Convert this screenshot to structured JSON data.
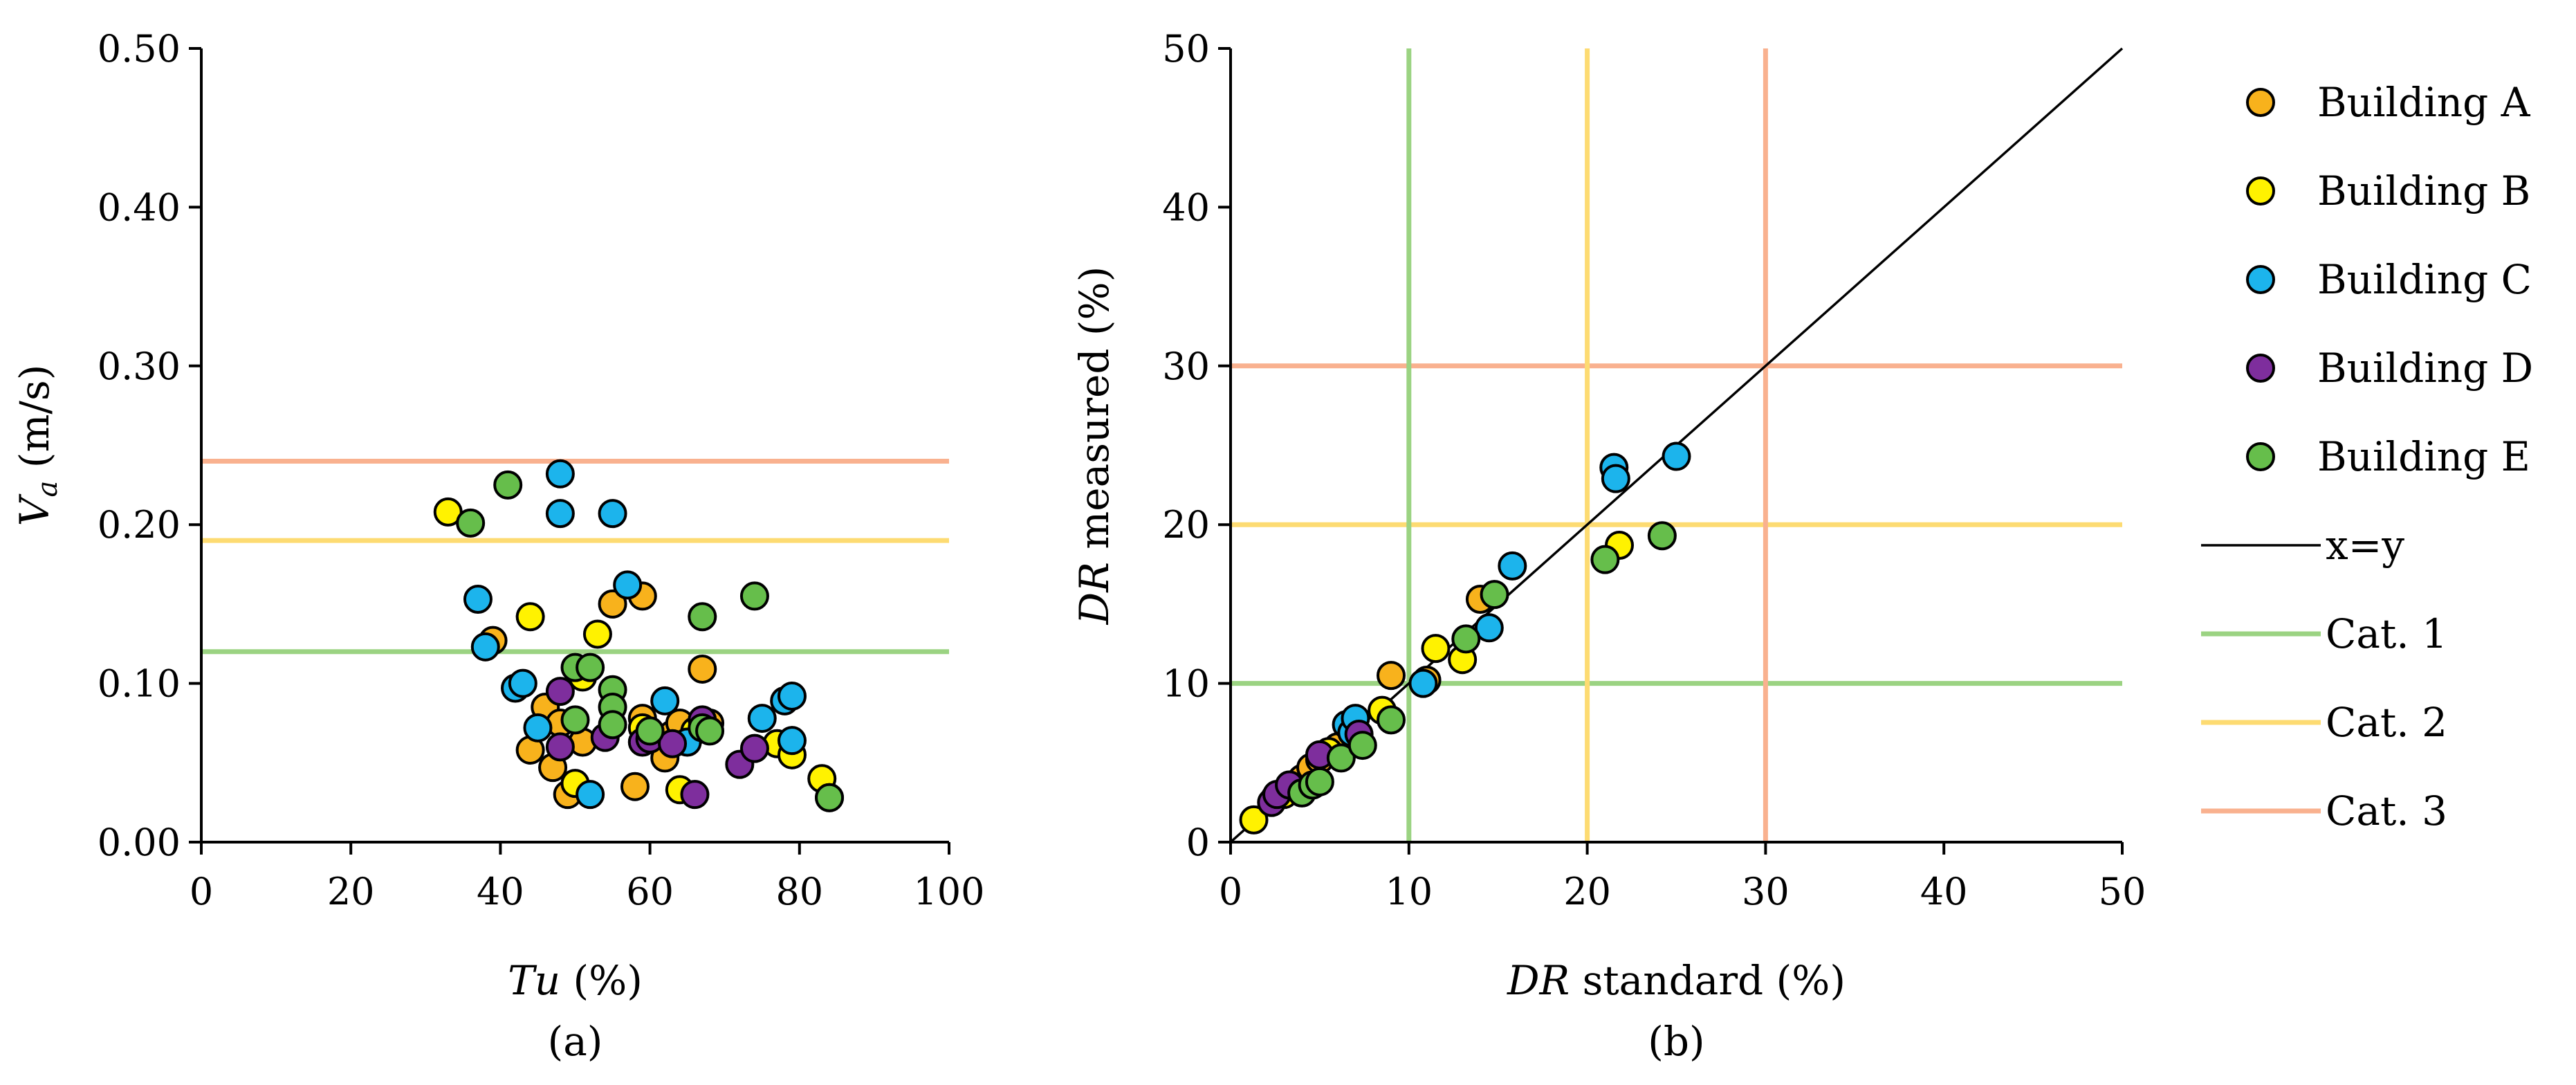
{
  "colors": {
    "building_a": "#F8B21C",
    "building_b": "#FFF200",
    "building_c": "#1CB4EC",
    "building_d": "#7E2E9D",
    "building_e": "#66BE4B",
    "cat1": "#9BD382",
    "cat2": "#FDDB72",
    "cat3": "#F9B18F",
    "identity": "#000000"
  },
  "legend": {
    "building_a": "Building A",
    "building_b": "Building B",
    "building_c": "Building C",
    "building_d": "Building D",
    "building_e": "Building E",
    "xy": "x=y",
    "cat1": "Cat. 1",
    "cat2": "Cat. 2",
    "cat3": "Cat. 3"
  },
  "chart_data": [
    {
      "type": "scatter",
      "panel_label": "(a)",
      "xlabel_italic": "Tu",
      "xlabel_rest": " (%)",
      "ylabel_italic": "V",
      "ylabel_sub": "a",
      "ylabel_rest": " (m/s)",
      "xlim": [
        0,
        100
      ],
      "ylim": [
        0,
        0.5
      ],
      "x_ticks": [
        0,
        20,
        40,
        60,
        80,
        100
      ],
      "x_tick_labels": [
        "0",
        "20",
        "40",
        "60",
        "80",
        "100"
      ],
      "y_ticks": [
        0,
        0.1,
        0.2,
        0.3,
        0.4,
        0.5
      ],
      "y_tick_labels": [
        "0.00",
        "0.10",
        "0.20",
        "0.30",
        "0.40",
        "0.50"
      ],
      "grid": false,
      "reference_lines": [
        {
          "series": "cat1",
          "orientation": "horizontal",
          "value": 0.12
        },
        {
          "series": "cat2",
          "orientation": "horizontal",
          "value": 0.19
        },
        {
          "series": "cat3",
          "orientation": "horizontal",
          "value": 0.24
        }
      ],
      "series": [
        {
          "key": "building_a",
          "points": [
            [
              39,
              0.127
            ],
            [
              44,
              0.058
            ],
            [
              46,
              0.085
            ],
            [
              47,
              0.047
            ],
            [
              48,
              0.075
            ],
            [
              49,
              0.03
            ],
            [
              51,
              0.063
            ],
            [
              55,
              0.15
            ],
            [
              58,
              0.035
            ],
            [
              59,
              0.155
            ],
            [
              59,
              0.078
            ],
            [
              62,
              0.053
            ],
            [
              63,
              0.068
            ],
            [
              64,
              0.075
            ],
            [
              67,
              0.109
            ],
            [
              68,
              0.075
            ]
          ]
        },
        {
          "key": "building_b",
          "points": [
            [
              33,
              0.208
            ],
            [
              44,
              0.142
            ],
            [
              50,
              0.037
            ],
            [
              51,
              0.104
            ],
            [
              53,
              0.131
            ],
            [
              59,
              0.072
            ],
            [
              64,
              0.033
            ],
            [
              66,
              0.07
            ],
            [
              77,
              0.062
            ],
            [
              79,
              0.055
            ],
            [
              83,
              0.04
            ],
            [
              84,
              0.028
            ]
          ]
        },
        {
          "key": "building_c",
          "points": [
            [
              37,
              0.153
            ],
            [
              38,
              0.123
            ],
            [
              42,
              0.097
            ],
            [
              43,
              0.1
            ],
            [
              45,
              0.072
            ],
            [
              48,
              0.232
            ],
            [
              48,
              0.207
            ],
            [
              52,
              0.03
            ],
            [
              55,
              0.207
            ],
            [
              57,
              0.162
            ],
            [
              62,
              0.089
            ],
            [
              65,
              0.063
            ],
            [
              75,
              0.078
            ],
            [
              78,
              0.089
            ],
            [
              79,
              0.092
            ],
            [
              79,
              0.064
            ]
          ]
        },
        {
          "key": "building_d",
          "points": [
            [
              48,
              0.095
            ],
            [
              48,
              0.06
            ],
            [
              54,
              0.066
            ],
            [
              59,
              0.063
            ],
            [
              60,
              0.065
            ],
            [
              63,
              0.062
            ],
            [
              66,
              0.03
            ],
            [
              67,
              0.077
            ],
            [
              72,
              0.049
            ],
            [
              74,
              0.059
            ]
          ]
        },
        {
          "key": "building_e",
          "points": [
            [
              36,
              0.201
            ],
            [
              41,
              0.225
            ],
            [
              50,
              0.11
            ],
            [
              50,
              0.077
            ],
            [
              52,
              0.11
            ],
            [
              55,
              0.096
            ],
            [
              55,
              0.085
            ],
            [
              55,
              0.074
            ],
            [
              60,
              0.07
            ],
            [
              67,
              0.142
            ],
            [
              67,
              0.072
            ],
            [
              68,
              0.07
            ],
            [
              74,
              0.155
            ],
            [
              84,
              0.028
            ]
          ]
        }
      ]
    },
    {
      "type": "scatter",
      "panel_label": "(b)",
      "xlabel_italic": "DR",
      "xlabel_rest": " standard (%)",
      "ylabel_italic": "DR",
      "ylabel_rest": " measured (%)",
      "xlim": [
        0,
        50
      ],
      "ylim": [
        0,
        50
      ],
      "x_ticks": [
        0,
        10,
        20,
        30,
        40,
        50
      ],
      "x_tick_labels": [
        "0",
        "10",
        "20",
        "30",
        "40",
        "50"
      ],
      "y_ticks": [
        0,
        10,
        20,
        30,
        40,
        50
      ],
      "y_tick_labels": [
        "0",
        "10",
        "20",
        "30",
        "40",
        "50"
      ],
      "grid": false,
      "identity_line": {
        "series": "xy",
        "from": [
          0,
          0
        ],
        "to": [
          50,
          50
        ]
      },
      "reference_lines": [
        {
          "series": "cat1",
          "orientation": "horizontal",
          "value": 10
        },
        {
          "series": "cat2",
          "orientation": "horizontal",
          "value": 20
        },
        {
          "series": "cat3",
          "orientation": "horizontal",
          "value": 30
        },
        {
          "series": "cat1",
          "orientation": "vertical",
          "value": 10
        },
        {
          "series": "cat2",
          "orientation": "vertical",
          "value": 20
        },
        {
          "series": "cat3",
          "orientation": "vertical",
          "value": 30
        }
      ],
      "series": [
        {
          "key": "building_a",
          "points": [
            [
              2.5,
              2.8
            ],
            [
              4,
              4
            ],
            [
              4.5,
              4.7
            ],
            [
              5,
              5.2
            ],
            [
              6,
              6
            ],
            [
              7,
              7
            ],
            [
              9,
              10.5
            ],
            [
              11,
              10.2
            ],
            [
              14,
              15.3
            ]
          ]
        },
        {
          "key": "building_b",
          "points": [
            [
              1.3,
              1.4
            ],
            [
              3,
              3
            ],
            [
              5.5,
              5.7
            ],
            [
              8.5,
              8.3
            ],
            [
              11.5,
              12.2
            ],
            [
              13,
              11.5
            ],
            [
              21.8,
              18.7
            ]
          ]
        },
        {
          "key": "building_c",
          "points": [
            [
              6.5,
              7.4
            ],
            [
              6.8,
              6.9
            ],
            [
              7,
              7.8
            ],
            [
              10.8,
              10
            ],
            [
              14.5,
              13.5
            ],
            [
              15.8,
              17.4
            ],
            [
              21.5,
              23.6
            ],
            [
              21.6,
              22.9
            ],
            [
              25,
              24.3
            ]
          ]
        },
        {
          "key": "building_d",
          "points": [
            [
              2.3,
              2.5
            ],
            [
              2.6,
              3
            ],
            [
              3.3,
              3.6
            ],
            [
              5,
              5.5
            ],
            [
              7.2,
              6.8
            ]
          ]
        },
        {
          "key": "building_e",
          "points": [
            [
              4,
              3.1
            ],
            [
              4.6,
              3.6
            ],
            [
              5,
              3.8
            ],
            [
              6.2,
              5.3
            ],
            [
              7.4,
              6.1
            ],
            [
              9,
              7.7
            ],
            [
              13.2,
              12.8
            ],
            [
              14.8,
              15.6
            ],
            [
              21,
              17.8
            ],
            [
              24.2,
              19.3
            ]
          ]
        }
      ]
    }
  ]
}
